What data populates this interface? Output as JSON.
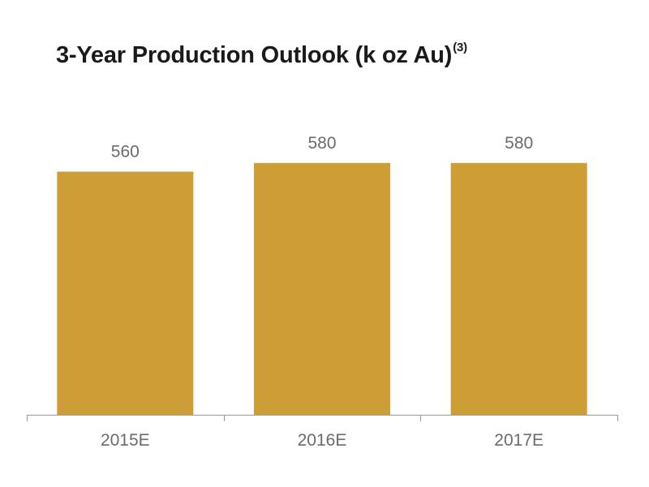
{
  "chart_data": {
    "type": "bar",
    "title": "3-Year Production Outlook (k oz Au)",
    "title_footnote": "(3)",
    "categories": [
      "2015E",
      "2016E",
      "2017E"
    ],
    "values": [
      560,
      580,
      580
    ],
    "value_labels": [
      "560",
      "580",
      "580"
    ],
    "xlabel": "",
    "ylabel": "",
    "ylim": [
      0,
      600
    ],
    "grid": false,
    "legend": "none",
    "bar_color": "#CE9E36",
    "axis_color": "#999999",
    "label_color": "#6b6b6b"
  }
}
